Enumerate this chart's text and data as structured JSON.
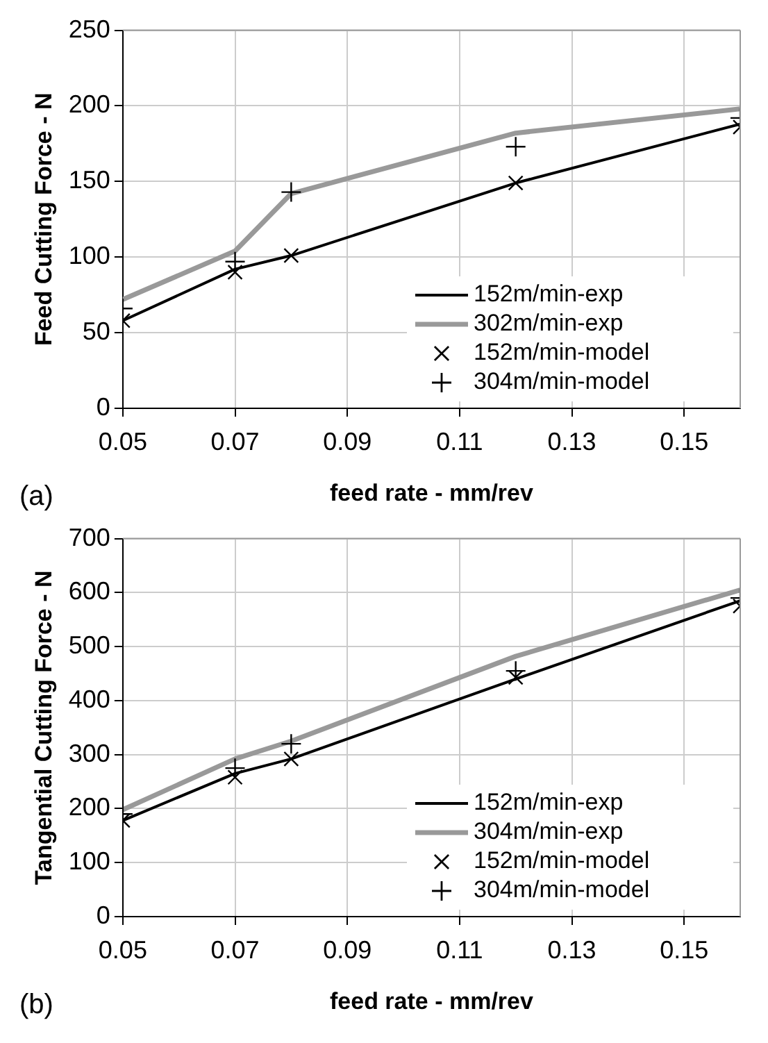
{
  "chart_data": [
    {
      "type": "line",
      "xlabel": "feed rate - mm/rev",
      "ylabel": "Feed Cutting Force - N",
      "annotations": [
        "(a)"
      ],
      "x": [
        0.05,
        0.07,
        0.08,
        0.12,
        0.16
      ],
      "xlim": [
        0.05,
        0.16
      ],
      "xticks": [
        0.05,
        0.07,
        0.09,
        0.11,
        0.13,
        0.15
      ],
      "ylim": [
        0,
        250
      ],
      "yticks": [
        0,
        50,
        100,
        150,
        200,
        250
      ],
      "grid": true,
      "legend": "bottom right",
      "series": [
        {
          "name": "152m/min-exp",
          "color": "#000000",
          "values": [
            58,
            92,
            101,
            149,
            188
          ]
        },
        {
          "name": "302m/min-exp",
          "color": "#999999",
          "values": [
            72,
            104,
            142,
            182,
            198
          ]
        },
        {
          "name": "152m/min-model",
          "type": "scatter",
          "marker": "x",
          "color": "#000000",
          "values": [
            58,
            90,
            101,
            149,
            186
          ]
        },
        {
          "name": "304m/min-model",
          "type": "scatter",
          "marker": "cross",
          "color": "#000000",
          "values": [
            66,
            97,
            143,
            173,
            192
          ]
        }
      ]
    },
    {
      "type": "line",
      "xlabel": "feed rate - mm/rev",
      "ylabel": "Tangential Cutting Force - N",
      "annotations": [
        "(b)"
      ],
      "x": [
        0.05,
        0.07,
        0.08,
        0.12,
        0.16
      ],
      "xlim": [
        0.05,
        0.16
      ],
      "xticks": [
        0.05,
        0.07,
        0.09,
        0.11,
        0.13,
        0.15
      ],
      "ylim": [
        0,
        700
      ],
      "yticks": [
        0,
        100,
        200,
        300,
        400,
        500,
        600,
        700
      ],
      "grid": true,
      "legend": "bottom right",
      "series": [
        {
          "name": "152m/min-exp",
          "color": "#000000",
          "values": [
            178,
            265,
            292,
            440,
            585
          ]
        },
        {
          "name": "304m/min-exp",
          "color": "#999999",
          "values": [
            198,
            292,
            325,
            482,
            605
          ]
        },
        {
          "name": "152m/min-model",
          "type": "scatter",
          "marker": "x",
          "color": "#000000",
          "values": [
            178,
            258,
            292,
            443,
            575
          ]
        },
        {
          "name": "304m/min-model",
          "type": "scatter",
          "marker": "cross",
          "color": "#000000",
          "values": [
            190,
            275,
            320,
            455,
            590
          ]
        }
      ]
    }
  ]
}
